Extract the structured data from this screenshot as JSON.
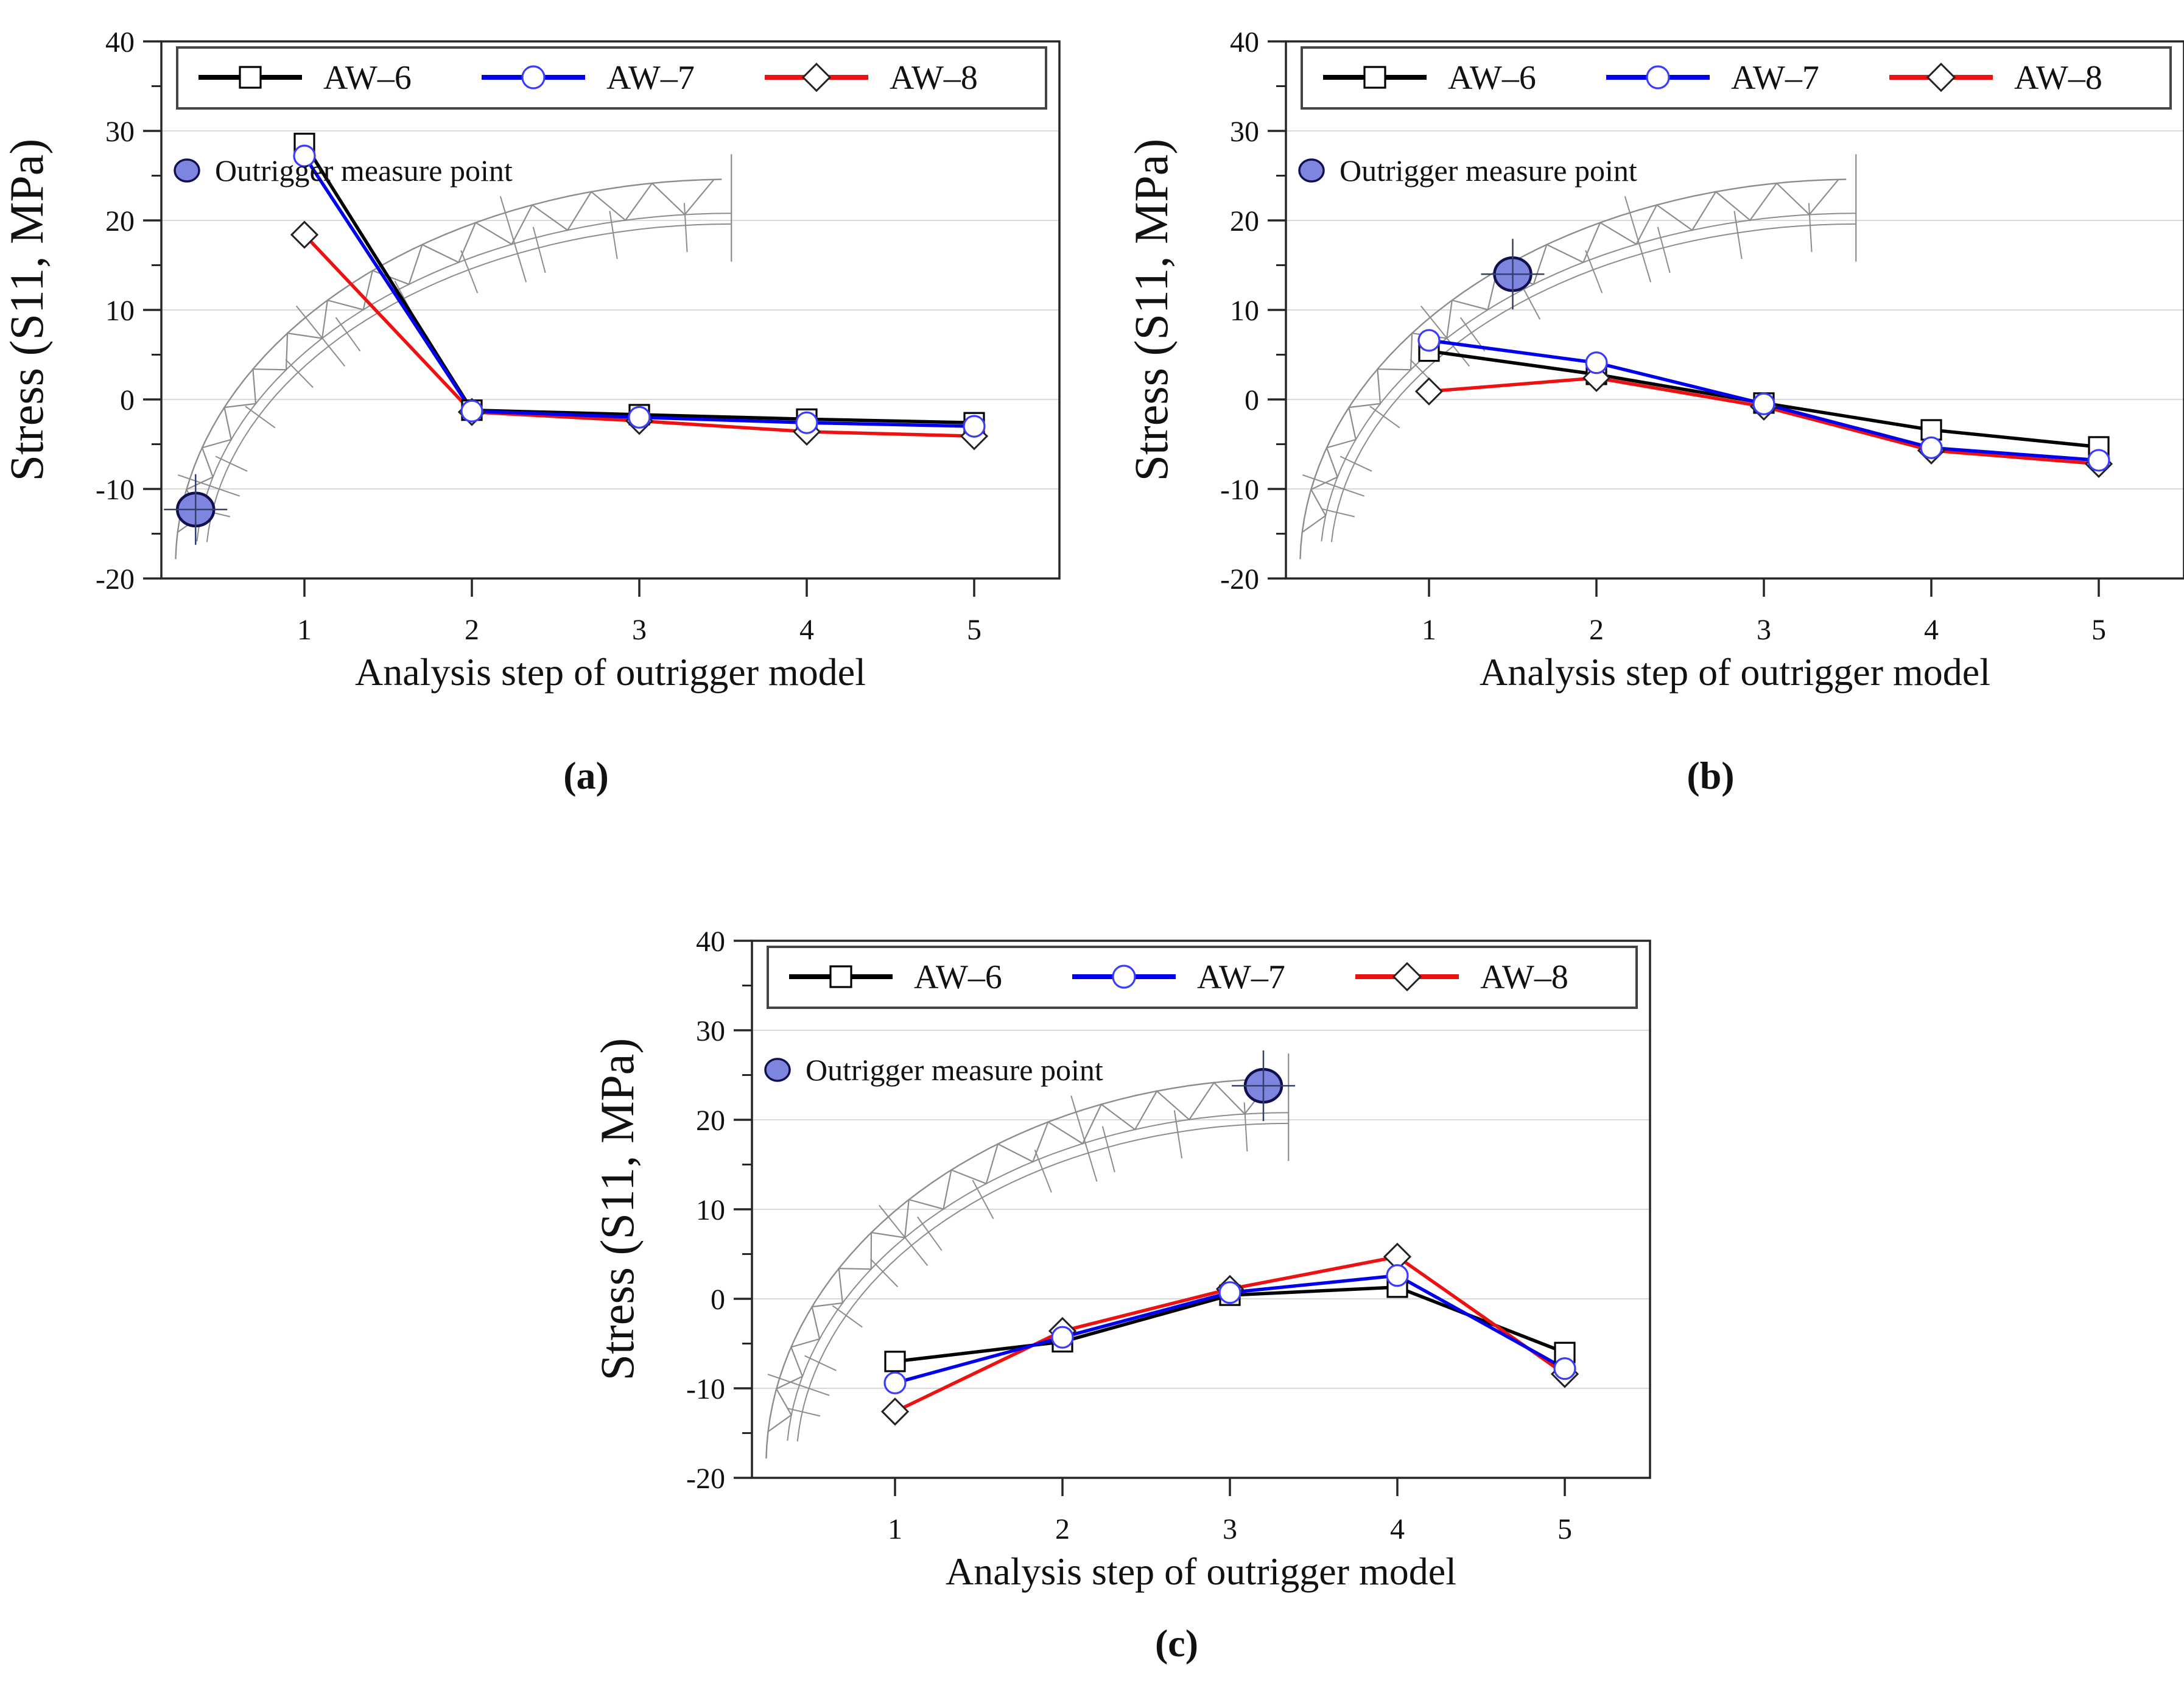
{
  "figure": {
    "xlabel": "Analysis step of outrigger model",
    "ylabel": "Stress (S11, MPa)",
    "legend_labels": [
      "AW–6",
      "AW–7",
      "AW–8"
    ],
    "measure_label": "Outrigger measure point",
    "colors": {
      "aw6": "#000000",
      "aw7": "#0000ee",
      "aw7_marker": "#3b3bff",
      "aw8": "#ee1111",
      "marker_fill": "#ffffff",
      "measure_fill": "#7d85de",
      "measure_stroke": "#10104e",
      "grid": "#d9d9d9",
      "border": "#262626",
      "sketch": "#8c8c8c"
    }
  },
  "chart_data": [
    {
      "id": "a",
      "caption": "(a)",
      "type": "line",
      "xlabel": "Analysis step of outrigger model",
      "ylabel": "Stress (S11, MPa)",
      "categories": [
        1,
        2,
        3,
        4,
        5
      ],
      "xticks": [
        1,
        2,
        3,
        4,
        5
      ],
      "yticks": [
        40,
        30,
        20,
        10,
        0,
        -10,
        -20
      ],
      "yticks_minor": [
        35,
        25,
        15,
        5,
        -5,
        -15
      ],
      "ylim": [
        -20,
        40
      ],
      "grid": "horizontal",
      "legend_position": "top",
      "series": [
        {
          "name": "AW–6",
          "marker": "square",
          "color": "#000000",
          "values": [
            28.6,
            -1.2,
            -1.7,
            -2.2,
            -2.6
          ]
        },
        {
          "name": "AW–7",
          "marker": "circle",
          "color": "#0000ee",
          "values": [
            27.2,
            -1.3,
            -2.0,
            -2.6,
            -3.0
          ]
        },
        {
          "name": "AW–8",
          "marker": "diamond",
          "color": "#ee1111",
          "values": [
            18.4,
            -1.4,
            -2.4,
            -3.6,
            -4.1
          ]
        }
      ],
      "annotations": {
        "measure_point": {
          "x": 0.35,
          "y": -12.3
        },
        "arch_sketch_end_x": 3.55
      }
    },
    {
      "id": "b",
      "caption": "(b)",
      "type": "line",
      "xlabel": "Analysis step of outrigger model",
      "ylabel": "Stress (S11, MPa)",
      "categories": [
        1,
        2,
        3,
        4,
        5
      ],
      "xticks": [
        1,
        2,
        3,
        4,
        5
      ],
      "yticks": [
        40,
        30,
        20,
        10,
        0,
        -10,
        -20
      ],
      "yticks_minor": [
        35,
        25,
        15,
        5,
        -5,
        -15
      ],
      "ylim": [
        -20,
        40
      ],
      "grid": "horizontal",
      "legend_position": "top",
      "series": [
        {
          "name": "AW–6",
          "marker": "square",
          "color": "#000000",
          "values": [
            5.4,
            2.8,
            -0.4,
            -3.4,
            -5.3
          ]
        },
        {
          "name": "AW–7",
          "marker": "circle",
          "color": "#0000ee",
          "values": [
            6.6,
            4.1,
            -0.5,
            -5.4,
            -6.8
          ]
        },
        {
          "name": "AW–8",
          "marker": "diamond",
          "color": "#ee1111",
          "values": [
            0.9,
            2.4,
            -0.8,
            -5.7,
            -7.2
          ]
        }
      ],
      "annotations": {
        "measure_point": {
          "x": 1.5,
          "y": 14.0
        },
        "arch_sketch_end_x": 3.55
      }
    },
    {
      "id": "c",
      "caption": "(c)",
      "type": "line",
      "xlabel": "Analysis step of outrigger model",
      "ylabel": "Stress (S11, MPa)",
      "categories": [
        1,
        2,
        3,
        4,
        5
      ],
      "xticks": [
        1,
        2,
        3,
        4,
        5
      ],
      "yticks": [
        40,
        30,
        20,
        10,
        0,
        -10,
        -20
      ],
      "yticks_minor": [
        35,
        25,
        15,
        5,
        -5,
        -15
      ],
      "ylim": [
        -20,
        40
      ],
      "grid": "horizontal",
      "legend_position": "top",
      "series": [
        {
          "name": "AW–6",
          "marker": "square",
          "color": "#000000",
          "values": [
            -7.0,
            -4.8,
            0.4,
            1.3,
            -6.0
          ]
        },
        {
          "name": "AW–7",
          "marker": "circle",
          "color": "#0000ee",
          "values": [
            -9.4,
            -4.3,
            0.7,
            2.6,
            -7.8
          ]
        },
        {
          "name": "AW–8",
          "marker": "diamond",
          "color": "#ee1111",
          "values": [
            -12.6,
            -3.6,
            1.1,
            4.7,
            -8.4
          ]
        }
      ],
      "annotations": {
        "measure_point": {
          "x": 3.2,
          "y": 23.8
        },
        "arch_sketch_end_x": 3.35
      }
    }
  ]
}
